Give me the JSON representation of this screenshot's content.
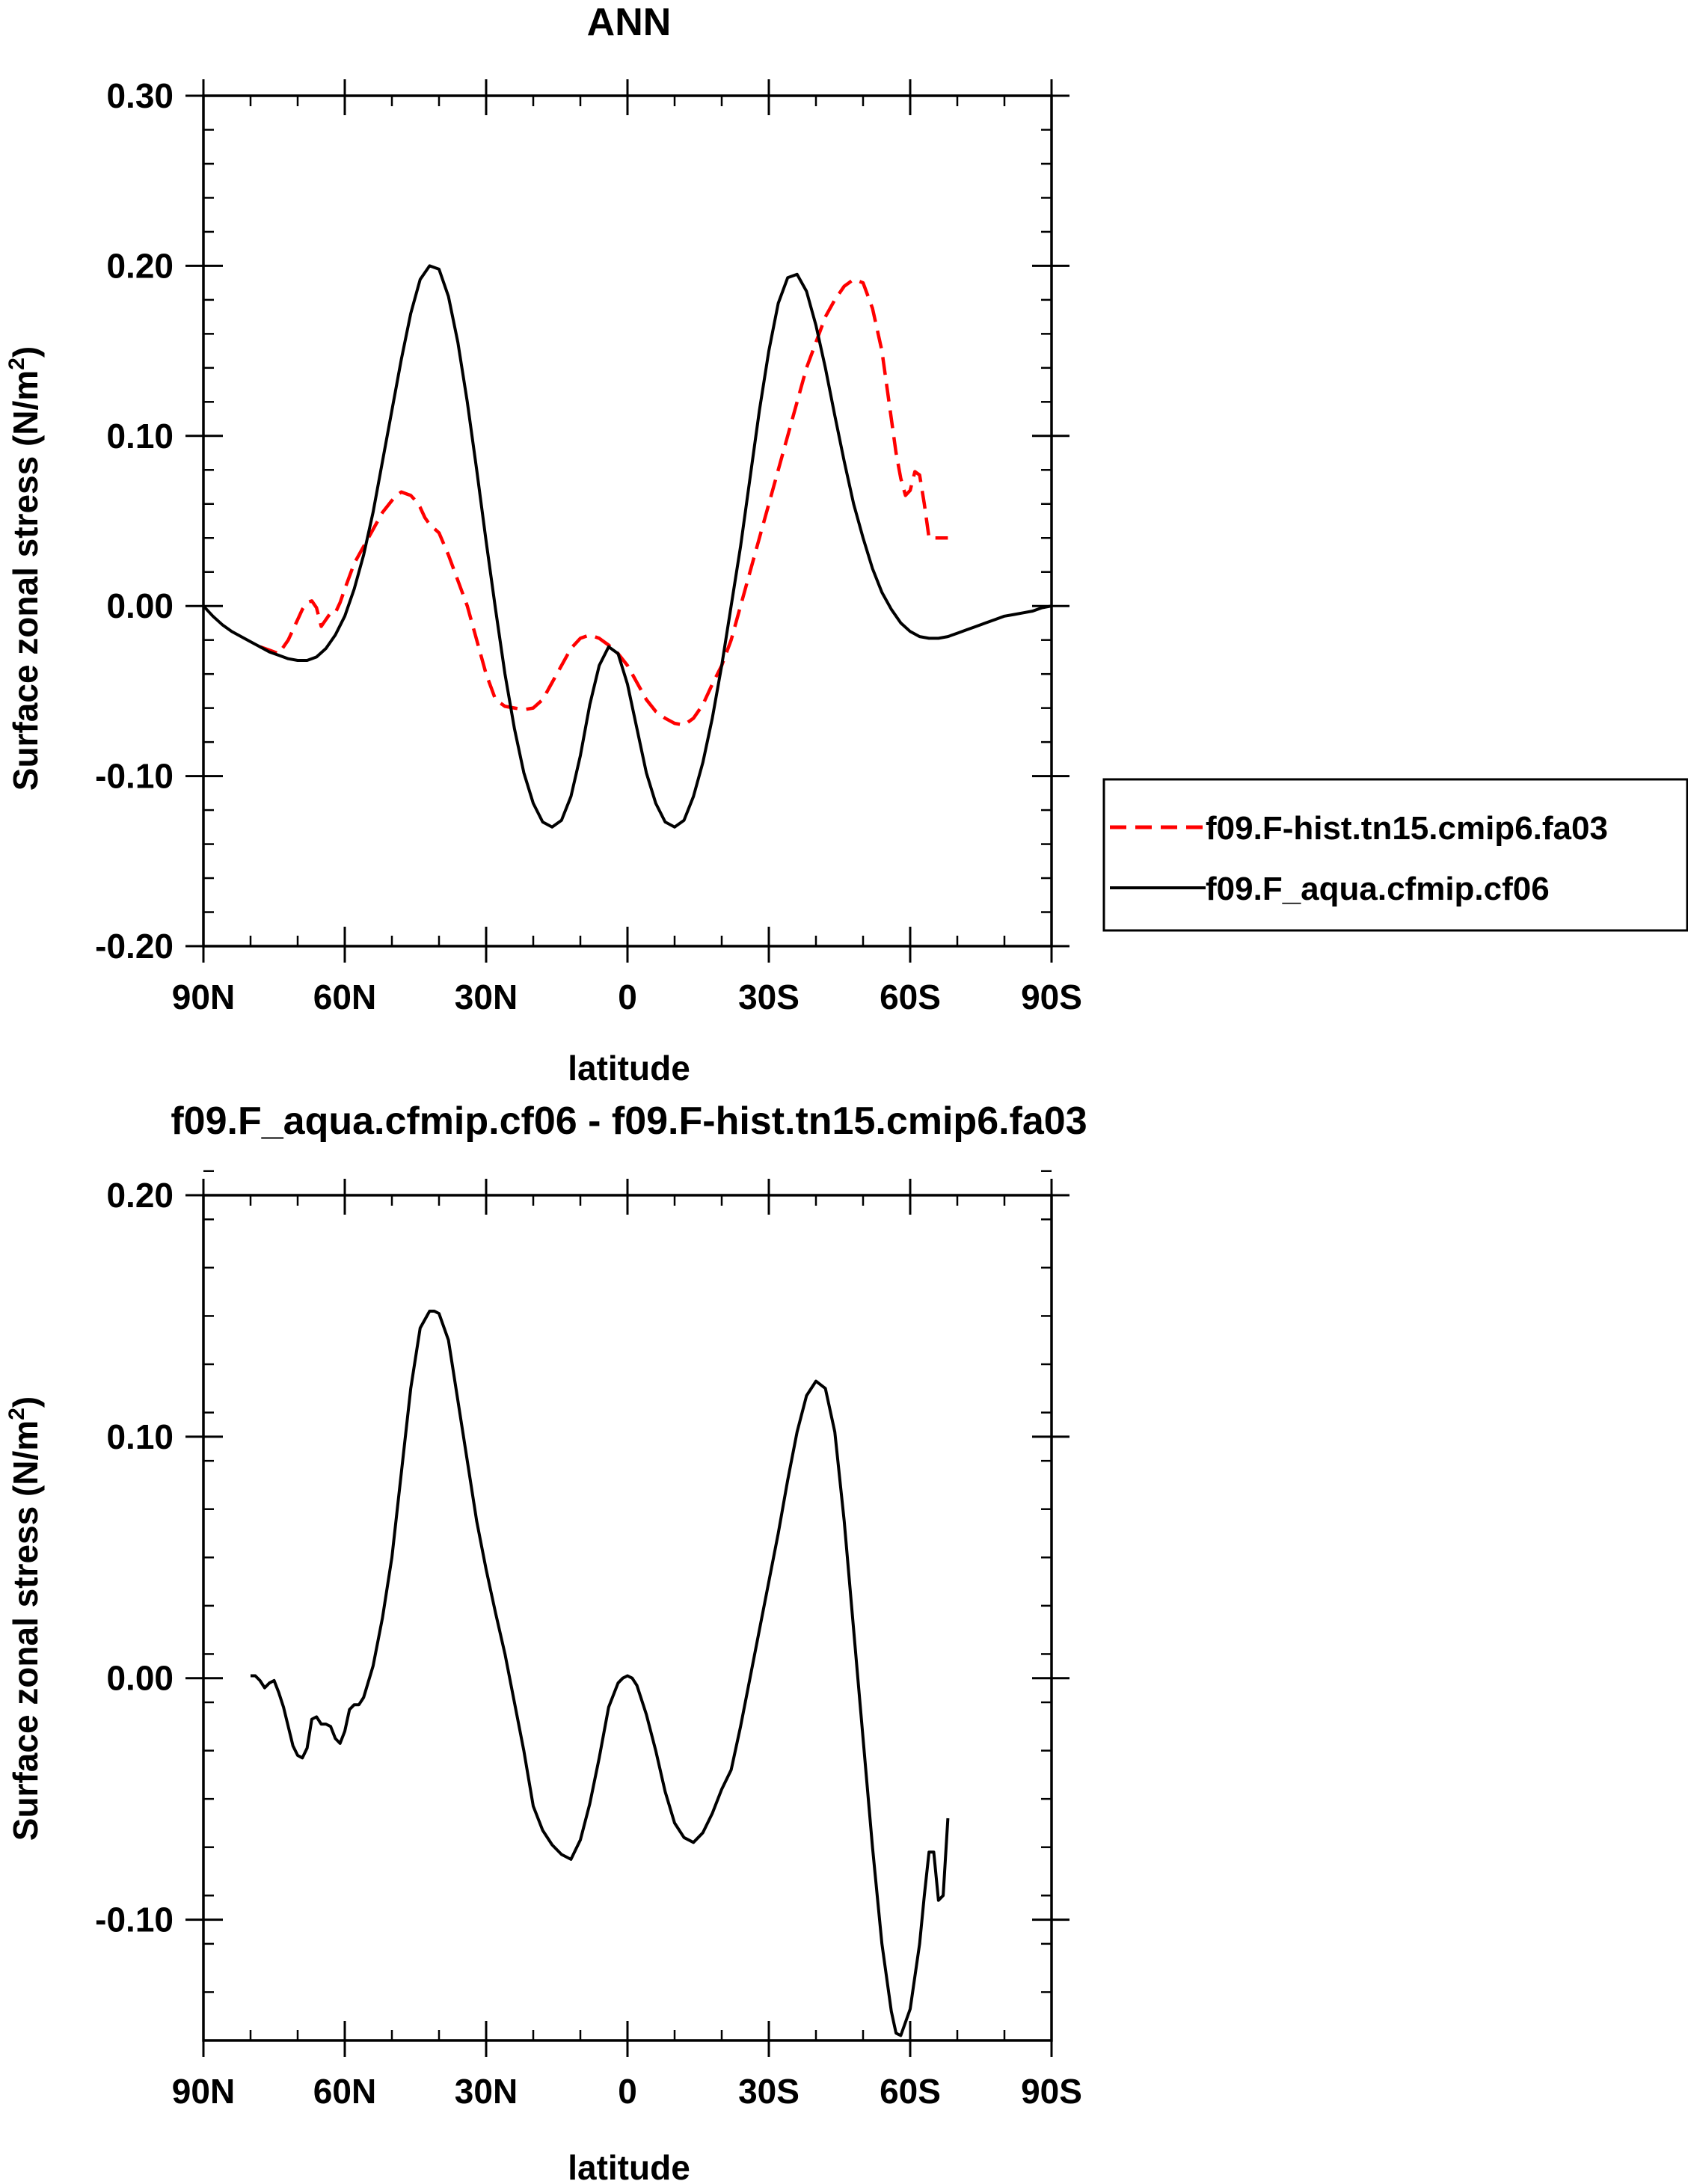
{
  "chart_data": [
    {
      "type": "line",
      "title": "ANN",
      "xlabel": "latitude",
      "ylabel_main": "Surface zonal stress (N/m",
      "ylabel_sup": "2",
      "ylabel_close": ")",
      "xlim": [
        90,
        -90
      ],
      "ylim": [
        -0.2,
        0.3
      ],
      "x_ticks": [
        90,
        60,
        30,
        0,
        -30,
        -60,
        -90
      ],
      "x_tick_labels": [
        "90N",
        "60N",
        "30N",
        "0",
        "30S",
        "60S",
        "90S"
      ],
      "x_minor_step": 10,
      "y_ticks": [
        -0.2,
        -0.1,
        0.0,
        0.1,
        0.2,
        0.3
      ],
      "y_tick_labels": [
        "-0.20",
        "-0.10",
        "0.00",
        "0.10",
        "0.20",
        "0.30"
      ],
      "y_minor_step": 0.02,
      "legend": {
        "placement": "right",
        "entries": [
          {
            "label": "f09.F-hist.tn15.cmip6.fa03",
            "color": "#ff0000",
            "dash": "dashed"
          },
          {
            "label": "f09.F_aqua.cfmip.cf06",
            "color": "#000000",
            "dash": "solid"
          }
        ]
      },
      "series": [
        {
          "name": "f09.F-hist.tn15.cmip6.fa03",
          "color": "#ff0000",
          "dash": "dashed",
          "x": [
            78,
            76,
            74,
            72,
            70,
            69,
            68,
            67,
            66,
            65,
            64,
            63,
            62,
            61,
            60,
            58,
            56,
            54,
            52,
            50,
            49,
            48,
            47,
            46,
            45,
            44,
            43,
            42,
            40,
            38,
            36,
            34,
            32,
            30,
            28,
            26,
            24,
            22,
            20,
            18,
            16,
            14,
            12,
            10,
            8,
            6,
            4,
            2,
            0,
            -2,
            -4,
            -6,
            -8,
            -10,
            -12,
            -14,
            -16,
            -18,
            -20,
            -22,
            -24,
            -26,
            -28,
            -30,
            -32,
            -34,
            -36,
            -38,
            -40,
            -42,
            -44,
            -46,
            -48,
            -50,
            -52,
            -54,
            -55,
            -56,
            -57,
            -58,
            -59,
            -60,
            -61,
            -62,
            -63,
            -64,
            -65,
            -66,
            -67,
            -68
          ],
          "y": [
            -0.024,
            -0.026,
            -0.028,
            -0.02,
            -0.008,
            -0.002,
            0.002,
            0.003,
            -0.001,
            -0.012,
            -0.008,
            -0.004,
            -0.004,
            0.002,
            0.01,
            0.025,
            0.035,
            0.045,
            0.055,
            0.062,
            0.065,
            0.067,
            0.066,
            0.065,
            0.062,
            0.058,
            0.052,
            0.048,
            0.043,
            0.03,
            0.015,
            0.0,
            -0.02,
            -0.04,
            -0.055,
            -0.059,
            -0.06,
            -0.061,
            -0.06,
            -0.055,
            -0.045,
            -0.035,
            -0.025,
            -0.019,
            -0.017,
            -0.019,
            -0.023,
            -0.028,
            -0.035,
            -0.045,
            -0.055,
            -0.062,
            -0.066,
            -0.069,
            -0.07,
            -0.066,
            -0.058,
            -0.046,
            -0.035,
            -0.02,
            0.0,
            0.02,
            0.04,
            0.06,
            0.08,
            0.1,
            0.12,
            0.14,
            0.155,
            0.17,
            0.18,
            0.188,
            0.192,
            0.19,
            0.175,
            0.15,
            0.13,
            0.11,
            0.09,
            0.075,
            0.065,
            0.068,
            0.079,
            0.077,
            0.06,
            0.04,
            0.04,
            0.04,
            0.04,
            0.04
          ]
        },
        {
          "name": "f09.F_aqua.cfmip.cf06",
          "color": "#000000",
          "dash": "solid",
          "x": [
            90,
            88,
            86,
            84,
            82,
            80,
            78,
            76,
            74,
            72,
            70,
            68,
            66,
            64,
            62,
            60,
            58,
            56,
            54,
            52,
            50,
            48,
            46,
            44,
            42,
            40,
            38,
            36,
            34,
            32,
            30,
            28,
            26,
            24,
            22,
            20,
            18,
            16,
            14,
            12,
            10,
            8,
            6,
            4,
            2,
            0,
            -2,
            -4,
            -6,
            -8,
            -10,
            -12,
            -14,
            -16,
            -18,
            -20,
            -22,
            -24,
            -26,
            -28,
            -30,
            -32,
            -34,
            -36,
            -38,
            -40,
            -42,
            -44,
            -46,
            -48,
            -50,
            -52,
            -54,
            -56,
            -58,
            -60,
            -62,
            -64,
            -66,
            -68,
            -70,
            -72,
            -74,
            -76,
            -78,
            -80,
            -82,
            -84,
            -86,
            -88,
            -90
          ],
          "y": [
            0.0,
            -0.006,
            -0.011,
            -0.015,
            -0.018,
            -0.021,
            -0.024,
            -0.027,
            -0.029,
            -0.031,
            -0.032,
            -0.032,
            -0.03,
            -0.025,
            -0.017,
            -0.006,
            0.01,
            0.03,
            0.055,
            0.085,
            0.115,
            0.145,
            0.172,
            0.192,
            0.2,
            0.198,
            0.182,
            0.155,
            0.12,
            0.08,
            0.038,
            -0.002,
            -0.04,
            -0.072,
            -0.098,
            -0.116,
            -0.127,
            -0.13,
            -0.126,
            -0.112,
            -0.088,
            -0.058,
            -0.035,
            -0.024,
            -0.028,
            -0.046,
            -0.072,
            -0.098,
            -0.116,
            -0.127,
            -0.13,
            -0.126,
            -0.112,
            -0.092,
            -0.066,
            -0.035,
            0.0,
            0.035,
            0.075,
            0.115,
            0.15,
            0.178,
            0.193,
            0.195,
            0.185,
            0.165,
            0.14,
            0.112,
            0.085,
            0.06,
            0.04,
            0.022,
            0.008,
            -0.002,
            -0.01,
            -0.015,
            -0.018,
            -0.019,
            -0.019,
            -0.018,
            -0.016,
            -0.014,
            -0.012,
            -0.01,
            -0.008,
            -0.006,
            -0.005,
            -0.004,
            -0.003,
            -0.001,
            0.0
          ]
        }
      ]
    },
    {
      "type": "line",
      "title": "f09.F_aqua.cfmip.cf06 - f09.F-hist.tn15.cmip6.fa03",
      "xlabel": "latitude",
      "ylabel_main": "Surface zonal stress (N/m",
      "ylabel_sup": "2",
      "ylabel_close": ")",
      "xlim": [
        90,
        -90
      ],
      "ylim": [
        -0.15,
        0.2
      ],
      "x_ticks": [
        90,
        60,
        30,
        0,
        -30,
        -60,
        -90
      ],
      "x_tick_labels": [
        "90N",
        "60N",
        "30N",
        "0",
        "30S",
        "60S",
        "90S"
      ],
      "x_minor_step": 10,
      "y_ticks": [
        -0.1,
        0.0,
        0.1,
        0.2
      ],
      "y_tick_labels": [
        "-0.10",
        "0.00",
        "0.10",
        "0.20"
      ],
      "y_minor_step": 0.02,
      "series": [
        {
          "color": "#000000",
          "dash": "solid",
          "x": [
            80,
            79,
            78,
            77,
            76,
            75,
            74,
            73,
            72,
            71,
            70,
            69,
            68,
            67,
            66,
            65,
            64,
            63,
            62,
            61,
            60,
            59,
            58,
            57,
            56,
            54,
            52,
            50,
            48,
            46,
            44,
            42,
            41,
            40,
            38,
            36,
            34,
            32,
            30,
            28,
            26,
            24,
            22,
            20,
            18,
            16,
            14,
            12,
            10,
            8,
            6,
            4,
            2,
            1,
            0,
            -1,
            -2,
            -4,
            -6,
            -8,
            -10,
            -12,
            -14,
            -16,
            -18,
            -20,
            -22,
            -24,
            -26,
            -28,
            -30,
            -32,
            -34,
            -36,
            -38,
            -40,
            -42,
            -44,
            -46,
            -48,
            -50,
            -52,
            -54,
            -56,
            -57,
            -58,
            -60,
            -62,
            -63,
            -64,
            -65,
            -66,
            -67,
            -68
          ],
          "y": [
            0.001,
            0.001,
            -0.001,
            -0.004,
            -0.002,
            -0.001,
            -0.006,
            -0.012,
            -0.02,
            -0.028,
            -0.032,
            -0.033,
            -0.029,
            -0.017,
            -0.016,
            -0.019,
            -0.019,
            -0.02,
            -0.025,
            -0.027,
            -0.022,
            -0.013,
            -0.011,
            -0.011,
            -0.008,
            0.005,
            0.025,
            0.05,
            0.085,
            0.12,
            0.145,
            0.152,
            0.152,
            0.151,
            0.14,
            0.115,
            0.09,
            0.065,
            0.045,
            0.027,
            0.01,
            -0.01,
            -0.03,
            -0.053,
            -0.063,
            -0.069,
            -0.073,
            -0.075,
            -0.067,
            -0.052,
            -0.033,
            -0.012,
            -0.002,
            0.0,
            0.001,
            0.0,
            -0.003,
            -0.015,
            -0.03,
            -0.047,
            -0.06,
            -0.066,
            -0.068,
            -0.064,
            -0.056,
            -0.046,
            -0.038,
            -0.02,
            0.0,
            0.02,
            0.04,
            0.06,
            0.082,
            0.102,
            0.117,
            0.123,
            0.12,
            0.102,
            0.065,
            0.02,
            -0.025,
            -0.07,
            -0.11,
            -0.138,
            -0.147,
            -0.148,
            -0.137,
            -0.11,
            -0.09,
            -0.072,
            -0.072,
            -0.092,
            -0.09,
            -0.058
          ]
        }
      ]
    }
  ]
}
